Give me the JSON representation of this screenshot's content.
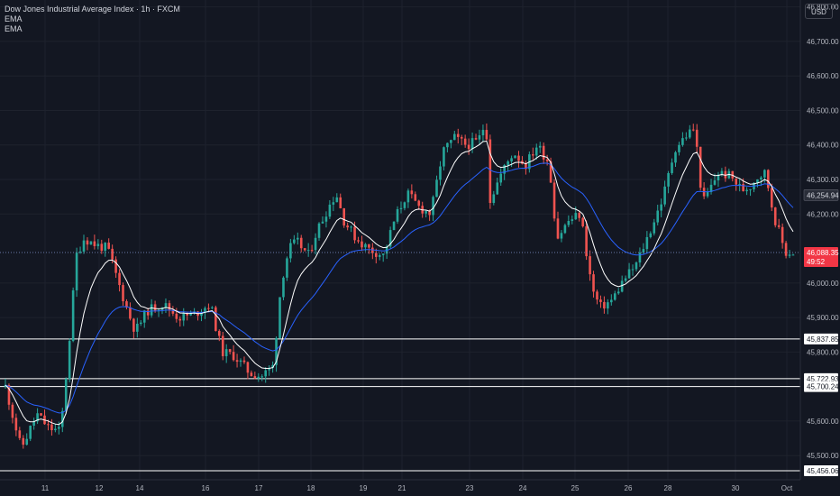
{
  "header": {
    "title": "Dow Jones Industrial Average Index · 1h · FXCM",
    "indicator_1": "EMA",
    "indicator_2": "EMA",
    "currency": "USD"
  },
  "colors": {
    "background": "#131722",
    "grid": "#1e222d",
    "up": "#26a69a",
    "down": "#ef5350",
    "ema_fast": "#ffffff",
    "ema_slow": "#2962ff",
    "price_tag": "#f23645",
    "level_line": "#ffffff"
  },
  "chart_data": {
    "type": "candlestick",
    "symbol": "Dow Jones Industrial Average Index",
    "interval": "1h",
    "source": "FXCM",
    "ylim": [
      45430,
      46820
    ],
    "y_ticks": [
      "46,800.00",
      "46,700.00",
      "46,600.00",
      "46,500.00",
      "46,400.00",
      "46,300.00",
      "46,200.00",
      "46,000.00",
      "45,900.00",
      "45,800.00",
      "45,600.00",
      "45,500.00"
    ],
    "x_ticks": [
      "11",
      "12",
      "14",
      "16",
      "17",
      "18",
      "19",
      "21",
      "23",
      "24",
      "25",
      "26",
      "28",
      "30",
      "Oct"
    ],
    "horizontal_levels": [
      "45,837.85",
      "45,722.93",
      "45,700.24",
      "45,456.06"
    ],
    "price_labels": [
      {
        "label": "46,254.94",
        "value": 46254.94,
        "style": "ema"
      },
      {
        "label": "46,088.35",
        "value": 46088.35,
        "style": "current"
      }
    ],
    "current_price_countdown": "49:52",
    "path_knots": [
      [
        0,
        45700
      ],
      [
        0.02,
        45520
      ],
      [
        0.04,
        45620
      ],
      [
        0.055,
        45580
      ],
      [
        0.07,
        45570
      ],
      [
        0.08,
        45800
      ],
      [
        0.09,
        46080
      ],
      [
        0.1,
        46130
      ],
      [
        0.115,
        46110
      ],
      [
        0.13,
        46100
      ],
      [
        0.145,
        45990
      ],
      [
        0.155,
        45920
      ],
      [
        0.165,
        45860
      ],
      [
        0.18,
        45920
      ],
      [
        0.2,
        45940
      ],
      [
        0.22,
        45900
      ],
      [
        0.24,
        45910
      ],
      [
        0.26,
        45940
      ],
      [
        0.275,
        45800
      ],
      [
        0.29,
        45790
      ],
      [
        0.31,
        45740
      ],
      [
        0.325,
        45730
      ],
      [
        0.34,
        45760
      ],
      [
        0.35,
        46000
      ],
      [
        0.36,
        46100
      ],
      [
        0.37,
        46120
      ],
      [
        0.385,
        46080
      ],
      [
        0.395,
        46150
      ],
      [
        0.41,
        46220
      ],
      [
        0.42,
        46260
      ],
      [
        0.43,
        46180
      ],
      [
        0.445,
        46130
      ],
      [
        0.46,
        46100
      ],
      [
        0.48,
        46080
      ],
      [
        0.495,
        46190
      ],
      [
        0.51,
        46260
      ],
      [
        0.525,
        46220
      ],
      [
        0.54,
        46200
      ],
      [
        0.555,
        46380
      ],
      [
        0.57,
        46420
      ],
      [
        0.585,
        46400
      ],
      [
        0.6,
        46410
      ],
      [
        0.61,
        46470
      ],
      [
        0.615,
        46240
      ],
      [
        0.63,
        46320
      ],
      [
        0.645,
        46380
      ],
      [
        0.66,
        46340
      ],
      [
        0.675,
        46400
      ],
      [
        0.69,
        46350
      ],
      [
        0.7,
        46130
      ],
      [
        0.715,
        46180
      ],
      [
        0.73,
        46200
      ],
      [
        0.745,
        45980
      ],
      [
        0.755,
        45930
      ],
      [
        0.77,
        45950
      ],
      [
        0.785,
        46010
      ],
      [
        0.8,
        46050
      ],
      [
        0.82,
        46160
      ],
      [
        0.835,
        46250
      ],
      [
        0.85,
        46390
      ],
      [
        0.865,
        46430
      ],
      [
        0.875,
        46450
      ],
      [
        0.885,
        46230
      ],
      [
        0.905,
        46320
      ],
      [
        0.92,
        46310
      ],
      [
        0.935,
        46270
      ],
      [
        0.945,
        46280
      ],
      [
        0.955,
        46310
      ],
      [
        0.965,
        46320
      ],
      [
        0.975,
        46200
      ],
      [
        0.99,
        46088
      ]
    ]
  }
}
